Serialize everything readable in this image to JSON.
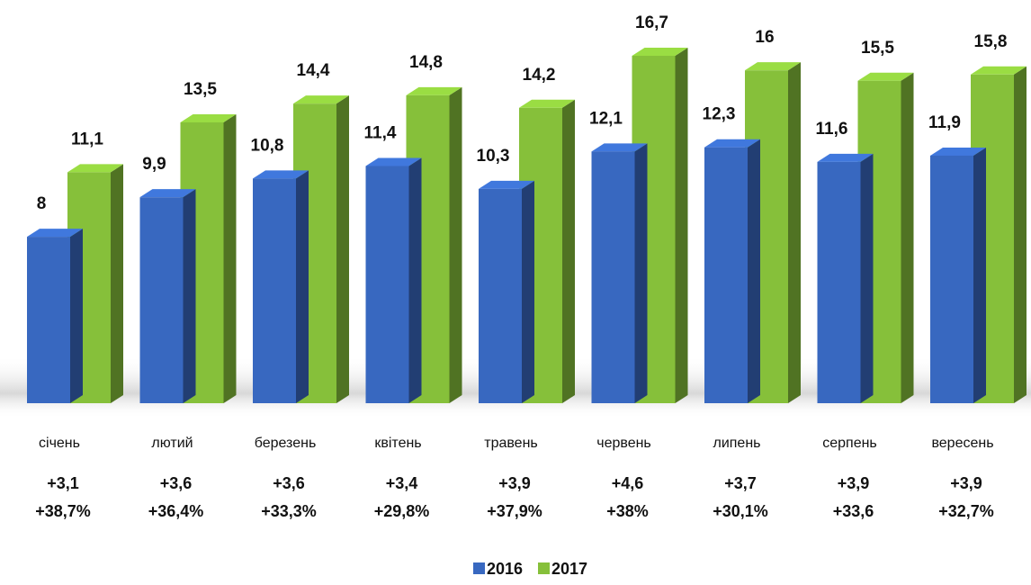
{
  "chart_data": {
    "type": "bar3d",
    "categories": [
      "січень",
      "лютий",
      "березень",
      "квітень",
      "травень",
      "червень",
      "липень",
      "серпень",
      "вересень"
    ],
    "series": [
      {
        "name": "2016",
        "color": "#3868c0",
        "values": [
          8,
          9.9,
          10.8,
          11.4,
          10.3,
          12.1,
          12.3,
          11.6,
          11.9
        ],
        "value_labels": [
          "8",
          "9,9",
          "10,8",
          "11,4",
          "10,3",
          "12,1",
          "12,3",
          "11,6",
          "11,9"
        ]
      },
      {
        "name": "2017",
        "color": "#86c03a",
        "values": [
          11.1,
          13.5,
          14.4,
          14.8,
          14.2,
          16.7,
          16,
          15.5,
          15.8
        ],
        "value_labels": [
          "11,1",
          "13,5",
          "14,4",
          "14,8",
          "14,2",
          "16,7",
          "16",
          "15,5",
          "15,8"
        ]
      }
    ],
    "changes": [
      "+3,1",
      "+3,6",
      "+3,6",
      "+3,4",
      "+3,9",
      "+4,6",
      "+3,7",
      "+3,9",
      "+3,9"
    ],
    "changes_percent": [
      "+38,7%",
      "+36,4%",
      "+33,3%",
      "+29,8%",
      "+37,9%",
      "+38%",
      "+30,1%",
      "+33,6",
      "+32,7%"
    ],
    "legend": "bottom"
  }
}
